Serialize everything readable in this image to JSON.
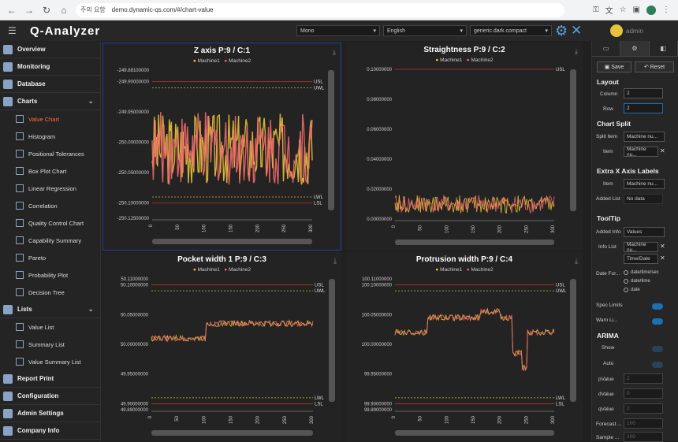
{
  "browser": {
    "security_label": "주의 요함",
    "url": "demo.dynamic-qs.com/#/chart-value"
  },
  "app": {
    "logo": "Q-Analyzer",
    "theme_select": "Mono",
    "language_select": "English",
    "style_select": "generic.dark.compact",
    "user_name": "admin"
  },
  "sidebar": {
    "items": [
      {
        "label": "Overview"
      },
      {
        "label": "Monitoring"
      },
      {
        "label": "Database"
      },
      {
        "label": "Charts"
      }
    ],
    "charts_sub": [
      {
        "label": "Value Chart"
      },
      {
        "label": "Histogram"
      },
      {
        "label": "Positional Tolerances"
      },
      {
        "label": "Box Plot Chart"
      },
      {
        "label": "Linear Regression"
      },
      {
        "label": "Correlation"
      },
      {
        "label": "Quality Control Chart"
      },
      {
        "label": "Capability Summary"
      },
      {
        "label": "Pareto"
      },
      {
        "label": "Probability Plot"
      },
      {
        "label": "Decision Tree"
      }
    ],
    "lists_label": "Lists",
    "lists_sub": [
      {
        "label": "Value List"
      },
      {
        "label": "Summary List"
      },
      {
        "label": "Value Summary List"
      }
    ],
    "bottom": [
      {
        "label": "Report Print"
      },
      {
        "label": "Configuration"
      },
      {
        "label": "Admin Settings"
      },
      {
        "label": "Company Info"
      }
    ]
  },
  "chart_data": [
    {
      "type": "line",
      "title": "Z axis P:9 / C:1",
      "series": [
        {
          "name": "Machine1",
          "color": "#e8c33a"
        },
        {
          "name": "Machine2",
          "color": "#f06a6a"
        }
      ],
      "ylim": [
        -250.125,
        -249.881
      ],
      "y_ticks": [
        "-249.88100000",
        "-249.90000000",
        "-249.95000000",
        "-250.00000000",
        "-250.05000000",
        "-250.10000000",
        "-250.12500000"
      ],
      "y_tick_values": [
        -249.881,
        -249.9,
        -249.95,
        -250.0,
        -250.05,
        -250.1,
        -250.125
      ],
      "x_ticks": [
        "0",
        "50",
        "100",
        "150",
        "200",
        "250",
        "300"
      ],
      "xlim": [
        0,
        300
      ],
      "limits": [
        {
          "label": "USL",
          "value": -249.9,
          "color": "#c03030"
        },
        {
          "label": "UWL",
          "value": -249.91,
          "color": "#c8c030"
        },
        {
          "label": "LWL",
          "value": -250.09,
          "color": "#c8c030"
        },
        {
          "label": "LSL",
          "value": -250.1,
          "color": "#c03030"
        }
      ],
      "signal": {
        "base": -250.01,
        "amp": 0.06
      }
    },
    {
      "type": "line",
      "title": "Straightness P:9 / C:2",
      "series": [
        {
          "name": "Machine1",
          "color": "#e8c33a"
        },
        {
          "name": "Machine2",
          "color": "#f06a6a"
        }
      ],
      "ylim": [
        0,
        0.1
      ],
      "y_ticks": [
        "0.10000000",
        "0.08000000",
        "0.06000000",
        "0.04000000",
        "0.02000000",
        "0.00000000"
      ],
      "y_tick_values": [
        0.1,
        0.08,
        0.06,
        0.04,
        0.02,
        0.0
      ],
      "x_ticks": [
        "0",
        "50",
        "100",
        "150",
        "200",
        "250",
        "300"
      ],
      "xlim": [
        0,
        300
      ],
      "limits": [
        {
          "label": "USL",
          "value": 0.1,
          "color": "#c03030"
        }
      ],
      "signal": {
        "base": 0.01,
        "amp": 0.006
      }
    },
    {
      "type": "line",
      "title": "Pocket width 1 P:9 / C:3",
      "series": [
        {
          "name": "Machine1",
          "color": "#e8c33a"
        },
        {
          "name": "Machine2",
          "color": "#f06a6a"
        }
      ],
      "ylim": [
        49.89,
        50.11
      ],
      "y_ticks": [
        "50.11000000",
        "50.10000000",
        "50.05000000",
        "50.00000000",
        "49.95000000",
        "49.90000000",
        "49.89000000"
      ],
      "y_tick_values": [
        50.11,
        50.1,
        50.05,
        50.0,
        49.95,
        49.9,
        49.89
      ],
      "x_ticks": [
        "0",
        "50",
        "100",
        "150",
        "200",
        "250",
        "300"
      ],
      "xlim": [
        0,
        300
      ],
      "limits": [
        {
          "label": "USL",
          "value": 50.1,
          "color": "#c03030"
        },
        {
          "label": "UWL",
          "value": 50.09,
          "color": "#c8c030"
        },
        {
          "label": "LWL",
          "value": 49.91,
          "color": "#c8c030"
        },
        {
          "label": "LSL",
          "value": 49.9,
          "color": "#c03030"
        }
      ],
      "signal": {
        "base": 50.01,
        "amp": 0.005
      }
    },
    {
      "type": "line",
      "title": "Protrusion width P:9 / C:4",
      "series": [
        {
          "name": "Machine1",
          "color": "#e8c33a"
        },
        {
          "name": "Machine2",
          "color": "#f06a6a"
        }
      ],
      "ylim": [
        99.89,
        100.11
      ],
      "y_ticks": [
        "100.11000000",
        "100.10000000",
        "100.05000000",
        "100.00000000",
        "99.95000000",
        "99.90000000",
        "99.89000000"
      ],
      "y_tick_values": [
        100.11,
        100.1,
        100.05,
        100.0,
        99.95,
        99.9,
        99.89
      ],
      "x_ticks": [
        "0",
        "50",
        "100",
        "150",
        "200",
        "250",
        "300"
      ],
      "xlim": [
        0,
        300
      ],
      "limits": [
        {
          "label": "USL",
          "value": 100.1,
          "color": "#c03030"
        },
        {
          "label": "UWL",
          "value": 100.09,
          "color": "#c8c030"
        },
        {
          "label": "LWL",
          "value": 99.91,
          "color": "#c8c030"
        },
        {
          "label": "LSL",
          "value": 99.9,
          "color": "#c03030"
        }
      ],
      "signal": {
        "base": 100.02,
        "amp": 0.005
      }
    }
  ],
  "right_panel": {
    "save_label": "Save",
    "reset_label": "Reset",
    "layout_heading": "Layout",
    "column_label": "Column",
    "column_value": "2",
    "row_label": "Row",
    "row_value": "2",
    "chart_split_heading": "Chart Split",
    "split_item_label": "Split Item",
    "split_item_value": "Machine nu...",
    "item_label": "Item",
    "item_value": "Machine nu...",
    "extra_x_heading": "Extra X Axis Labels",
    "extra_item_label": "Item",
    "extra_item_value": "Machine nu...",
    "added_list_label": "Added List",
    "added_list_value": "No data",
    "tooltip_heading": "ToolTip",
    "added_info_label": "Added Info",
    "added_info_value": "Values",
    "info_list_label": "Info List",
    "info_list_1": "Machine nu...",
    "info_list_2": "Time/Date",
    "date_format_label": "Date For...",
    "date_opt_1": "date/time/sec",
    "date_opt_2": "date/time",
    "date_opt_3": "date",
    "spec_limits_label": "Spec Limits",
    "warn_limits_label": "Warn Li...",
    "arima_heading": "ARIMA",
    "show_label": "Show",
    "auto_label": "Auto",
    "pvalue_label": "pValue",
    "pvalue": "2",
    "dvalue_label": "dValue",
    "dvalue": "0",
    "qvalue_label": "qValue",
    "qvalue": "2",
    "forecast_label": "Forecast ...",
    "forecast": "100",
    "sample_label": "Sample ...",
    "sample": "200"
  }
}
